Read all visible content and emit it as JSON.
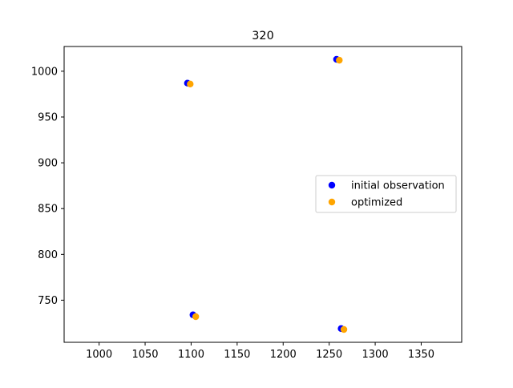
{
  "chart_data": {
    "type": "scatter",
    "title": "320",
    "xlabel": "",
    "ylabel": "",
    "xlim": [
      962,
      1394
    ],
    "ylim": [
      704,
      1027
    ],
    "xticks": [
      1000,
      1050,
      1100,
      1150,
      1200,
      1250,
      1300,
      1350
    ],
    "yticks": [
      750,
      800,
      850,
      900,
      950,
      1000
    ],
    "grid": false,
    "legend_position": "center-right",
    "series": [
      {
        "name": "initial observation",
        "color": "#0000ff",
        "points": [
          {
            "x": 1096,
            "y": 987
          },
          {
            "x": 1258,
            "y": 1013
          },
          {
            "x": 1102,
            "y": 734
          },
          {
            "x": 1263,
            "y": 719
          }
        ]
      },
      {
        "name": "optimized",
        "color": "#ffa500",
        "points": [
          {
            "x": 1099,
            "y": 986
          },
          {
            "x": 1261,
            "y": 1012
          },
          {
            "x": 1105,
            "y": 732
          },
          {
            "x": 1266,
            "y": 718
          }
        ]
      }
    ]
  }
}
